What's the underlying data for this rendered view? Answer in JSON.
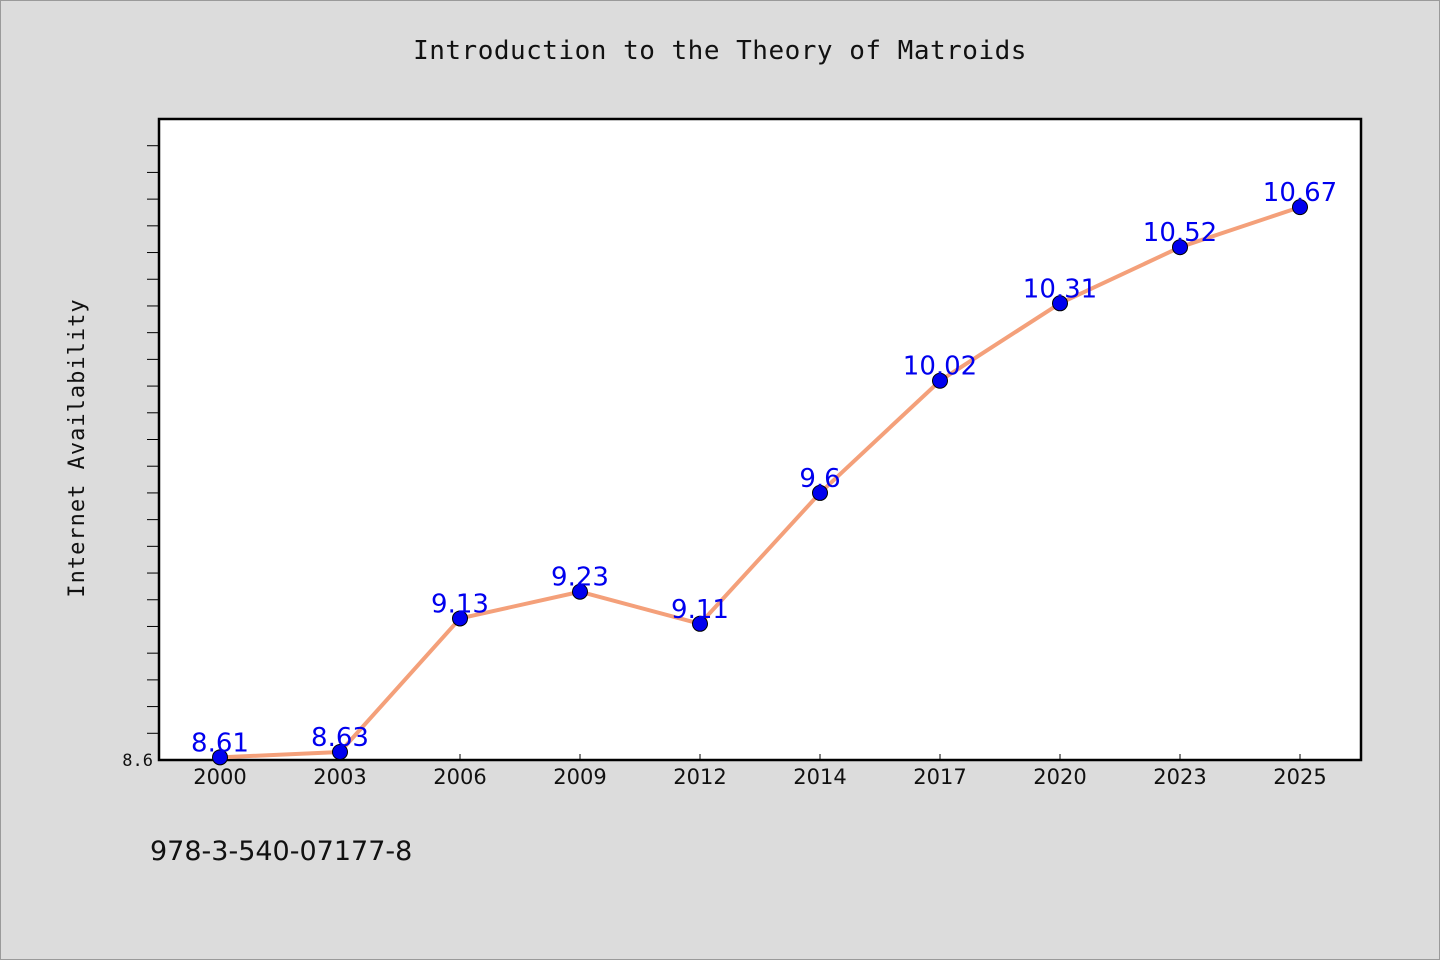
{
  "chart_data": {
    "type": "line",
    "title": "Introduction to the Theory of Matroids",
    "ylabel": "Internet Availability",
    "xlabel": "",
    "categories": [
      "2000",
      "2003",
      "2006",
      "2009",
      "2012",
      "2014",
      "2017",
      "2020",
      "2023",
      "2025"
    ],
    "series": [
      {
        "values": [
          8.61,
          8.63,
          9.13,
          9.23,
          9.11,
          9.6,
          10.02,
          10.31,
          10.52,
          10.67
        ],
        "labels": [
          "8.61",
          "8.63",
          "9.13",
          "9.23",
          "9.11",
          "9.6",
          "10.02",
          "10.31",
          "10.52",
          "10.67"
        ],
        "line_color": "#f4a07a",
        "marker_color": "#0000ee",
        "label_color": "#0000ee"
      }
    ],
    "ylim": [
      8.6,
      11.0
    ],
    "y_tick_labels": [
      {
        "value": 8.6,
        "label": "8.6"
      }
    ],
    "y_minor_step": 0.1,
    "grid": false,
    "legend": "none"
  },
  "footer": {
    "isbn": "978-3-540-07177-8"
  },
  "colors": {
    "background": "#dcdcdc",
    "plot_background": "#ffffff",
    "axis": "#000000"
  }
}
